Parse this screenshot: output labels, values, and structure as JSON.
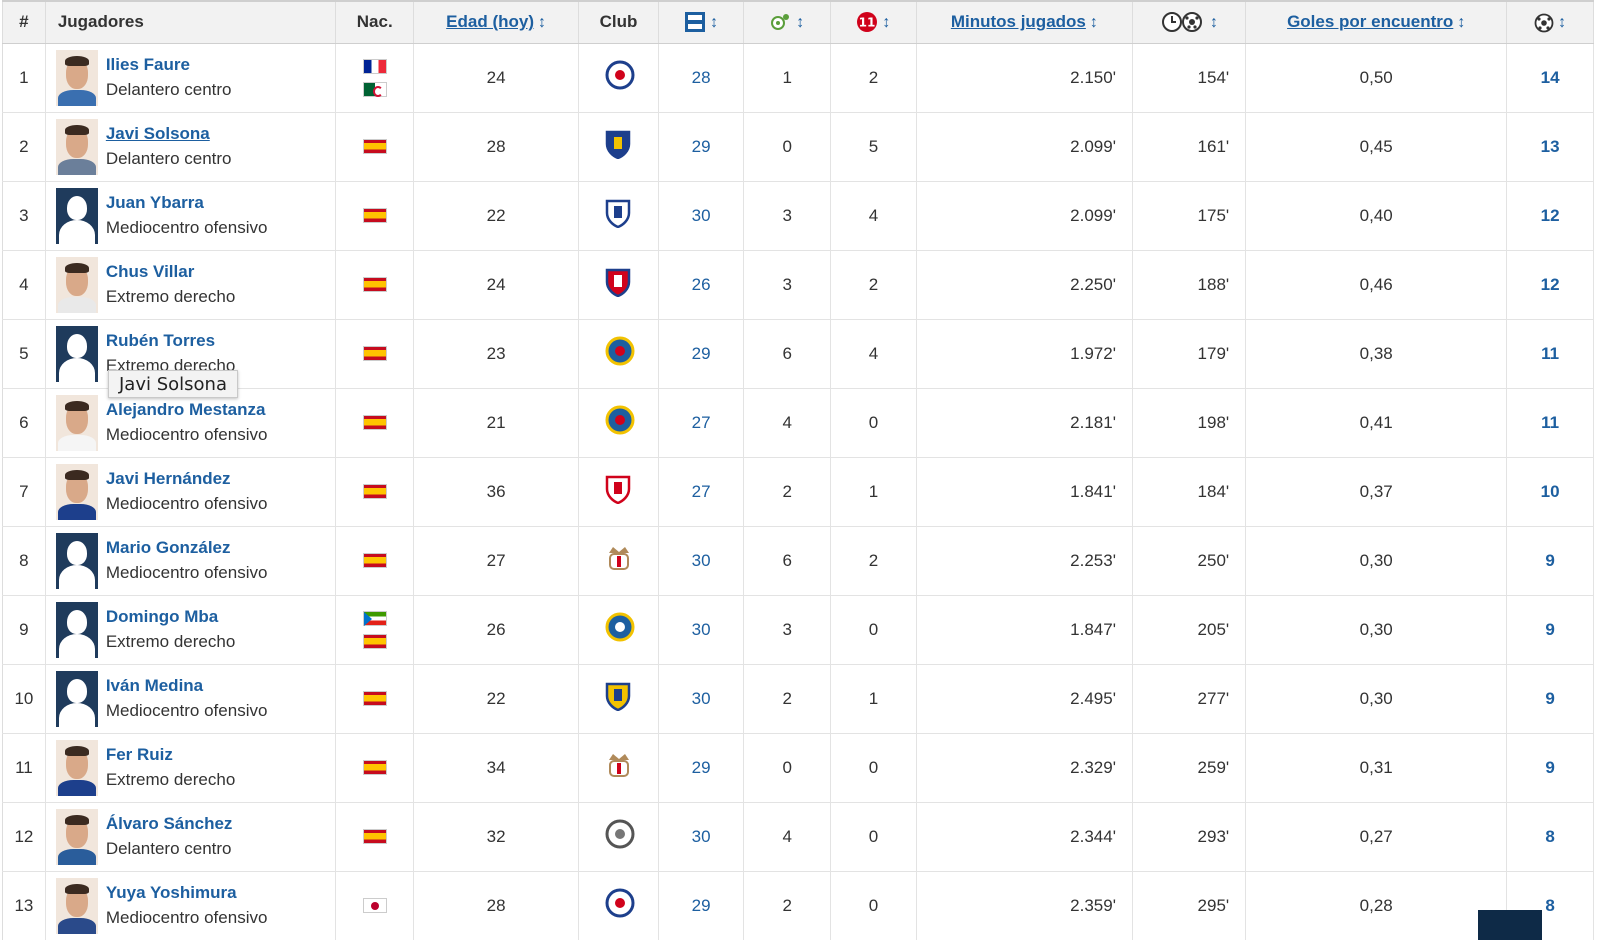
{
  "header": {
    "rank": "#",
    "players": "Jugadores",
    "nationality": "Nac.",
    "age": "Edad (hoy)",
    "club": "Club",
    "minutes": "Minutos jugados",
    "goals_per_match": "Goles por encuentro",
    "sort_arrow": "↕"
  },
  "header_icons": {
    "appearances": "lineup-icon",
    "assists": "ball-assist-icon",
    "starting": "starting-eleven-icon",
    "minutes_per_goal": "clock-ball-icon",
    "goals": "ball-icon"
  },
  "tooltip": "Javi Solsona",
  "rows": [
    {
      "rank": "1",
      "name": "Ilies Faure",
      "position": "Delantero centro",
      "flags": [
        "fr",
        "dz"
      ],
      "age": "24",
      "apps": "28",
      "assists": "1",
      "starts": "2",
      "minutes": "2.150'",
      "min_per_goal": "154'",
      "goals_per_match": "0,50",
      "goals": "14"
    },
    {
      "rank": "2",
      "name": "Javi Solsona",
      "position": "Delantero centro",
      "flags": [
        "es"
      ],
      "age": "28",
      "apps": "29",
      "assists": "0",
      "starts": "5",
      "minutes": "2.099'",
      "min_per_goal": "161'",
      "goals_per_match": "0,45",
      "goals": "13"
    },
    {
      "rank": "3",
      "name": "Juan Ybarra",
      "position": "Mediocentro ofensivo",
      "flags": [
        "es"
      ],
      "age": "22",
      "apps": "30",
      "assists": "3",
      "starts": "4",
      "minutes": "2.099'",
      "min_per_goal": "175'",
      "goals_per_match": "0,40",
      "goals": "12"
    },
    {
      "rank": "4",
      "name": "Chus Villar",
      "position": "Extremo derecho",
      "flags": [
        "es"
      ],
      "age": "24",
      "apps": "26",
      "assists": "3",
      "starts": "2",
      "minutes": "2.250'",
      "min_per_goal": "188'",
      "goals_per_match": "0,46",
      "goals": "12"
    },
    {
      "rank": "5",
      "name": "Rubén Torres",
      "position": "Extremo derecho",
      "flags": [
        "es"
      ],
      "age": "23",
      "apps": "29",
      "assists": "6",
      "starts": "4",
      "minutes": "1.972'",
      "min_per_goal": "179'",
      "goals_per_match": "0,38",
      "goals": "11"
    },
    {
      "rank": "6",
      "name": "Alejandro Mestanza",
      "position": "Mediocentro ofensivo",
      "flags": [
        "es"
      ],
      "age": "21",
      "apps": "27",
      "assists": "4",
      "starts": "0",
      "minutes": "2.181'",
      "min_per_goal": "198'",
      "goals_per_match": "0,41",
      "goals": "11"
    },
    {
      "rank": "7",
      "name": "Javi Hernández",
      "position": "Mediocentro ofensivo",
      "flags": [
        "es"
      ],
      "age": "36",
      "apps": "27",
      "assists": "2",
      "starts": "1",
      "minutes": "1.841'",
      "min_per_goal": "184'",
      "goals_per_match": "0,37",
      "goals": "10"
    },
    {
      "rank": "8",
      "name": "Mario González",
      "position": "Mediocentro ofensivo",
      "flags": [
        "es"
      ],
      "age": "27",
      "apps": "30",
      "assists": "6",
      "starts": "2",
      "minutes": "2.253'",
      "min_per_goal": "250'",
      "goals_per_match": "0,30",
      "goals": "9"
    },
    {
      "rank": "9",
      "name": "Domingo Mba",
      "position": "Extremo derecho",
      "flags": [
        "gq",
        "es"
      ],
      "age": "26",
      "apps": "30",
      "assists": "3",
      "starts": "0",
      "minutes": "1.847'",
      "min_per_goal": "205'",
      "goals_per_match": "0,30",
      "goals": "9"
    },
    {
      "rank": "10",
      "name": "Iván Medina",
      "position": "Mediocentro ofensivo",
      "flags": [
        "es"
      ],
      "age": "22",
      "apps": "30",
      "assists": "2",
      "starts": "1",
      "minutes": "2.495'",
      "min_per_goal": "277'",
      "goals_per_match": "0,30",
      "goals": "9"
    },
    {
      "rank": "11",
      "name": "Fer Ruiz",
      "position": "Extremo derecho",
      "flags": [
        "es"
      ],
      "age": "34",
      "apps": "29",
      "assists": "0",
      "starts": "0",
      "minutes": "2.329'",
      "min_per_goal": "259'",
      "goals_per_match": "0,31",
      "goals": "9"
    },
    {
      "rank": "12",
      "name": "Álvaro Sánchez",
      "position": "Delantero centro",
      "flags": [
        "es"
      ],
      "age": "32",
      "apps": "30",
      "assists": "4",
      "starts": "0",
      "minutes": "2.344'",
      "min_per_goal": "293'",
      "goals_per_match": "0,27",
      "goals": "8"
    },
    {
      "rank": "13",
      "name": "Yuya Yoshimura",
      "position": "Mediocentro ofensivo",
      "flags": [
        "jp"
      ],
      "age": "28",
      "apps": "29",
      "assists": "2",
      "starts": "0",
      "minutes": "2.359'",
      "min_per_goal": "295'",
      "goals_per_match": "0,28",
      "goals": "8"
    }
  ],
  "colors": {
    "link": "#1d5fa0",
    "header_bg": "#f2f2f2",
    "red_card": "#d0021b"
  }
}
